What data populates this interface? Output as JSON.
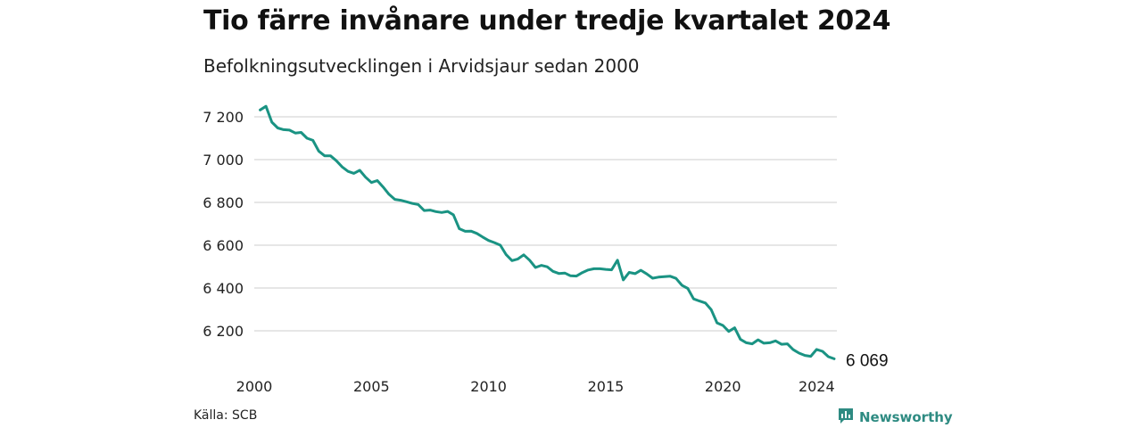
{
  "header": {
    "title": "Tio färre invånare under tredje kvartalet 2024",
    "subtitle": "Befolkningsutvecklingen i Arvidsjaur sedan 2000"
  },
  "footer": {
    "source": "Källa: SCB",
    "brand": "Newsworthy",
    "brand_icon": "bar-chart-icon"
  },
  "colors": {
    "line": "#1a9383",
    "grid": "#dddddd",
    "brand": "#2e8b82"
  },
  "chart_data": {
    "type": "line",
    "title": "Tio färre invånare under tredje kvartalet 2024",
    "subtitle": "Befolkningsutvecklingen i Arvidsjaur sedan 2000",
    "xlabel": "",
    "ylabel": "",
    "x_ticks": [
      2000,
      2005,
      2010,
      2015,
      2020,
      2024
    ],
    "y_ticks": [
      6200,
      6400,
      6600,
      6800,
      7000,
      7200
    ],
    "y_tick_labels": [
      "6 200",
      "6 400",
      "6 600",
      "6 800",
      "7 000",
      "7 200"
    ],
    "xlim": [
      2000,
      2024.75
    ],
    "ylim": [
      6050,
      7250
    ],
    "grid": "horizontal",
    "last_value_label": "6 069",
    "series": [
      {
        "values": [
          [
            2000.25,
            7232
          ],
          [
            2000.5,
            7249
          ],
          [
            2000.75,
            7175
          ],
          [
            2001.0,
            7148
          ],
          [
            2001.25,
            7140
          ],
          [
            2001.5,
            7138
          ],
          [
            2001.75,
            7124
          ],
          [
            2002.0,
            7127
          ],
          [
            2002.25,
            7100
          ],
          [
            2002.5,
            7090
          ],
          [
            2002.75,
            7040
          ],
          [
            2003.0,
            7018
          ],
          [
            2003.25,
            7018
          ],
          [
            2003.5,
            6995
          ],
          [
            2003.75,
            6966
          ],
          [
            2004.0,
            6945
          ],
          [
            2004.25,
            6936
          ],
          [
            2004.5,
            6950
          ],
          [
            2004.75,
            6918
          ],
          [
            2005.0,
            6893
          ],
          [
            2005.25,
            6902
          ],
          [
            2005.5,
            6872
          ],
          [
            2005.75,
            6838
          ],
          [
            2006.0,
            6814
          ],
          [
            2006.25,
            6810
          ],
          [
            2006.5,
            6803
          ],
          [
            2006.75,
            6795
          ],
          [
            2007.0,
            6790
          ],
          [
            2007.25,
            6762
          ],
          [
            2007.5,
            6764
          ],
          [
            2007.75,
            6757
          ],
          [
            2008.0,
            6753
          ],
          [
            2008.25,
            6758
          ],
          [
            2008.5,
            6742
          ],
          [
            2008.75,
            6677
          ],
          [
            2009.0,
            6665
          ],
          [
            2009.25,
            6666
          ],
          [
            2009.5,
            6655
          ],
          [
            2009.75,
            6638
          ],
          [
            2010.0,
            6622
          ],
          [
            2010.25,
            6612
          ],
          [
            2010.5,
            6600
          ],
          [
            2010.75,
            6556
          ],
          [
            2011.0,
            6528
          ],
          [
            2011.25,
            6536
          ],
          [
            2011.5,
            6555
          ],
          [
            2011.75,
            6530
          ],
          [
            2012.0,
            6496
          ],
          [
            2012.25,
            6506
          ],
          [
            2012.5,
            6499
          ],
          [
            2012.75,
            6478
          ],
          [
            2013.0,
            6468
          ],
          [
            2013.25,
            6470
          ],
          [
            2013.5,
            6457
          ],
          [
            2013.75,
            6456
          ],
          [
            2014.0,
            6472
          ],
          [
            2014.25,
            6484
          ],
          [
            2014.5,
            6490
          ],
          [
            2014.75,
            6490
          ],
          [
            2015.0,
            6487
          ],
          [
            2015.25,
            6485
          ],
          [
            2015.5,
            6530
          ],
          [
            2015.75,
            6438
          ],
          [
            2016.0,
            6473
          ],
          [
            2016.25,
            6467
          ],
          [
            2016.5,
            6483
          ],
          [
            2016.75,
            6466
          ],
          [
            2017.0,
            6446
          ],
          [
            2017.25,
            6451
          ],
          [
            2017.5,
            6453
          ],
          [
            2017.75,
            6455
          ],
          [
            2018.0,
            6445
          ],
          [
            2018.25,
            6413
          ],
          [
            2018.5,
            6398
          ],
          [
            2018.75,
            6349
          ],
          [
            2019.0,
            6339
          ],
          [
            2019.25,
            6330
          ],
          [
            2019.5,
            6299
          ],
          [
            2019.75,
            6237
          ],
          [
            2020.0,
            6225
          ],
          [
            2020.25,
            6197
          ],
          [
            2020.5,
            6214
          ],
          [
            2020.75,
            6160
          ],
          [
            2021.0,
            6144
          ],
          [
            2021.25,
            6139
          ],
          [
            2021.5,
            6158
          ],
          [
            2021.75,
            6142
          ],
          [
            2022.0,
            6144
          ],
          [
            2022.25,
            6153
          ],
          [
            2022.5,
            6137
          ],
          [
            2022.75,
            6139
          ],
          [
            2023.0,
            6112
          ],
          [
            2023.25,
            6096
          ],
          [
            2023.5,
            6085
          ],
          [
            2023.75,
            6081
          ],
          [
            2024.0,
            6113
          ],
          [
            2024.25,
            6104
          ],
          [
            2024.5,
            6079
          ],
          [
            2024.75,
            6069
          ]
        ]
      }
    ]
  }
}
